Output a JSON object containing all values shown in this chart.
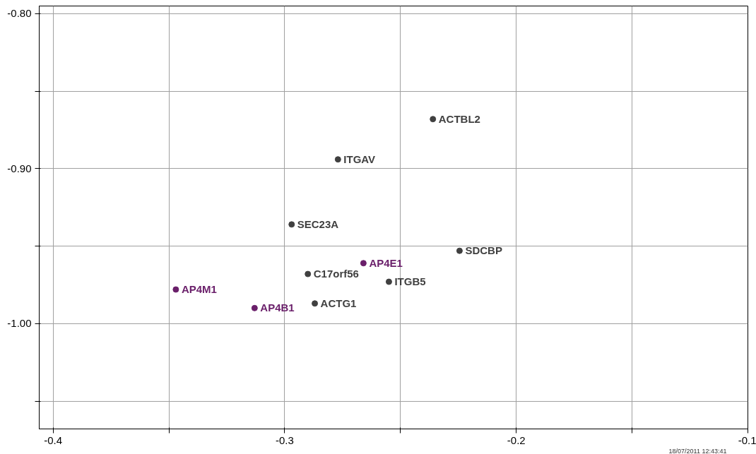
{
  "chart_data": {
    "type": "scatter",
    "xlim": [
      -0.406,
      -0.1
    ],
    "ylim": [
      -1.068,
      -0.795
    ],
    "xticks": [
      -0.4,
      {
        "value": -0.35,
        "label": null
      },
      -0.3,
      {
        "value": -0.25,
        "label": null
      },
      -0.2,
      {
        "value": -0.15,
        "label": null
      },
      -0.1
    ],
    "yticks": [
      {
        "value": -0.8,
        "label": "-0.80"
      },
      {
        "value": -0.85,
        "label": null
      },
      {
        "value": -0.9,
        "label": "-0.90"
      },
      {
        "value": -0.95,
        "label": null
      },
      {
        "value": -1.0,
        "label": "-1.00"
      },
      {
        "value": -1.05,
        "label": null
      }
    ],
    "grid": true,
    "marker": "circle",
    "series": [
      {
        "color": "#404040",
        "x": [
          -0.236,
          -0.277,
          -0.297,
          -0.2245,
          -0.29,
          -0.255,
          -0.287
        ],
        "values": [
          -0.868,
          -0.894,
          -0.936,
          -0.953,
          -0.968,
          -0.973,
          -0.987
        ]
      },
      {
        "color": "#6a1f6a",
        "x": [
          -0.266,
          -0.347,
          -0.313
        ],
        "values": [
          -0.961,
          -0.978,
          -0.99
        ]
      }
    ],
    "annotations": [
      {
        "text": "ACTBL2",
        "x": -0.236,
        "y": -0.868
      },
      {
        "text": "ITGAV",
        "x": -0.277,
        "y": -0.894
      },
      {
        "text": "SEC23A",
        "x": -0.297,
        "y": -0.936
      },
      {
        "text": "SDCBP",
        "x": -0.2245,
        "y": -0.953
      },
      {
        "text": "C17orf56",
        "x": -0.29,
        "y": -0.968
      },
      {
        "text": "ITGB5",
        "x": -0.255,
        "y": -0.973
      },
      {
        "text": "ACTG1",
        "x": -0.287,
        "y": -0.987
      },
      {
        "text": "AP4E1",
        "x": -0.266,
        "y": -0.961
      },
      {
        "text": "AP4M1",
        "x": -0.347,
        "y": -0.978
      },
      {
        "text": "AP4B1",
        "x": -0.313,
        "y": -0.99
      },
      "18/07/2011 12:43:41"
    ]
  }
}
